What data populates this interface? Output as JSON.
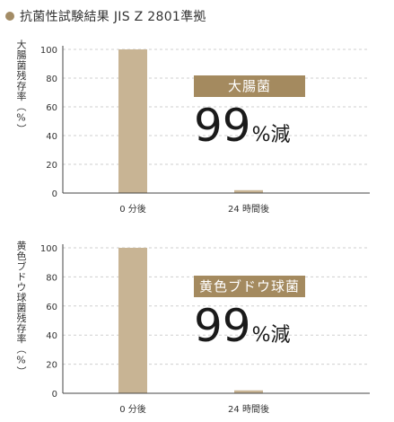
{
  "header": {
    "title": "抗菌性試験結果 JIS Z 2801準拠",
    "bullet_color": "#a38c66"
  },
  "colors": {
    "bar": "#c8b494",
    "badge": "#a48a5f",
    "grid": "#cfcfcf",
    "axis": "#444444"
  },
  "chart_data": [
    {
      "type": "bar",
      "ylabel": "大腸菌残存率（%）",
      "categories": [
        "0 分後",
        "24 時間後"
      ],
      "values": [
        100,
        2
      ],
      "ylim": [
        0,
        100
      ],
      "yticks": [
        0,
        20,
        40,
        60,
        80,
        100
      ],
      "grid": true,
      "badge": "大腸菌",
      "reduction": {
        "value": "99",
        "unit": "%",
        "word": "減"
      }
    },
    {
      "type": "bar",
      "ylabel": "黄色ブドウ球菌残存率（%）",
      "categories": [
        "0 分後",
        "24 時間後"
      ],
      "values": [
        100,
        2
      ],
      "ylim": [
        0,
        100
      ],
      "yticks": [
        0,
        20,
        40,
        60,
        80,
        100
      ],
      "grid": true,
      "badge": "黄色ブドウ球菌",
      "reduction": {
        "value": "99",
        "unit": "%",
        "word": "減"
      }
    }
  ]
}
